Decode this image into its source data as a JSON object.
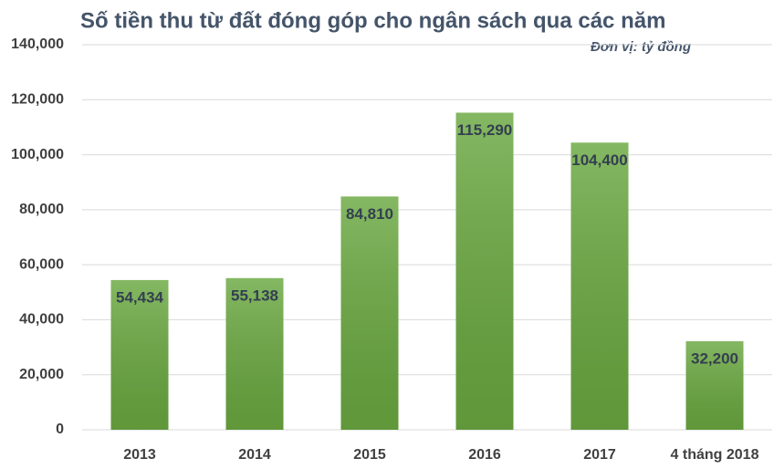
{
  "chart_data": {
    "type": "bar",
    "title": "Số tiền thu từ đất đóng góp cho ngân sách qua các năm",
    "subtitle": "Đơn vị: tỷ đồng",
    "categories": [
      "2013",
      "2014",
      "2015",
      "2016",
      "2017",
      "4 tháng 2018"
    ],
    "values": [
      54434,
      55138,
      84810,
      115290,
      104400,
      32200
    ],
    "value_labels": [
      "54,434",
      "55,138",
      "84,810",
      "115,290",
      "104,400",
      "32,200"
    ],
    "color": "#6aa840",
    "ylim": [
      0,
      140000
    ],
    "yticks": [
      0,
      {
        "value": 20000,
        "label": "20,000"
      },
      {
        "value": 40000,
        "label": "40,000"
      },
      {
        "value": 60000,
        "label": "60,000"
      },
      {
        "value": 80000,
        "label": "80,000"
      },
      {
        "value": 100000,
        "label": "100,000"
      },
      {
        "value": 120000,
        "label": "120,000"
      },
      {
        "value": 140000,
        "label": "140,000"
      }
    ],
    "grid": true
  }
}
